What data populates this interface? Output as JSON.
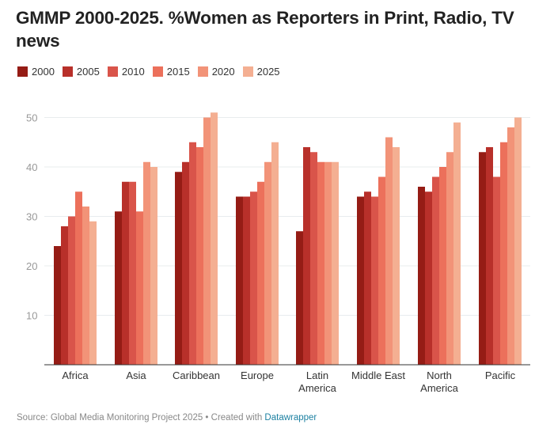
{
  "title": "GMMP 2000-2025. %Women as Reporters in Print, Radio, TV news",
  "source": {
    "text": "Source: Global Media Monitoring Project 2025 • Created with ",
    "link": "Datawrapper"
  },
  "chart_data": {
    "type": "bar",
    "title": "GMMP 2000-2025. %Women as Reporters in Print, Radio, TV news",
    "xlabel": "",
    "ylabel": "",
    "ylim": [
      0,
      52
    ],
    "yticks": [
      10,
      20,
      30,
      40,
      50
    ],
    "grid": true,
    "legend": "top-left",
    "categories": [
      "Africa",
      "Asia",
      "Caribbean",
      "Europe",
      "Latin America",
      "Middle East",
      "North America",
      "Pacific"
    ],
    "category_lines": [
      [
        "Africa"
      ],
      [
        "Asia"
      ],
      [
        "Caribbean"
      ],
      [
        "Europe"
      ],
      [
        "Latin",
        "America"
      ],
      [
        "Middle East"
      ],
      [
        "North",
        "America"
      ],
      [
        "Pacific"
      ]
    ],
    "series": [
      {
        "name": "2000",
        "color": "#951c15",
        "values": [
          24,
          31,
          39,
          34,
          27,
          34,
          36,
          43
        ]
      },
      {
        "name": "2005",
        "color": "#b8302a",
        "values": [
          28,
          37,
          41,
          34,
          44,
          35,
          35,
          44
        ]
      },
      {
        "name": "2010",
        "color": "#d9544a",
        "values": [
          30,
          37,
          45,
          35,
          43,
          34,
          38,
          38
        ]
      },
      {
        "name": "2015",
        "color": "#ec705b",
        "values": [
          35,
          31,
          44,
          37,
          41,
          38,
          40,
          45
        ]
      },
      {
        "name": "2020",
        "color": "#f29378",
        "values": [
          32,
          41,
          50,
          41,
          41,
          46,
          43,
          48
        ]
      },
      {
        "name": "2025",
        "color": "#f4af92",
        "values": [
          29,
          40,
          51,
          45,
          41,
          44,
          49,
          50
        ]
      }
    ]
  }
}
